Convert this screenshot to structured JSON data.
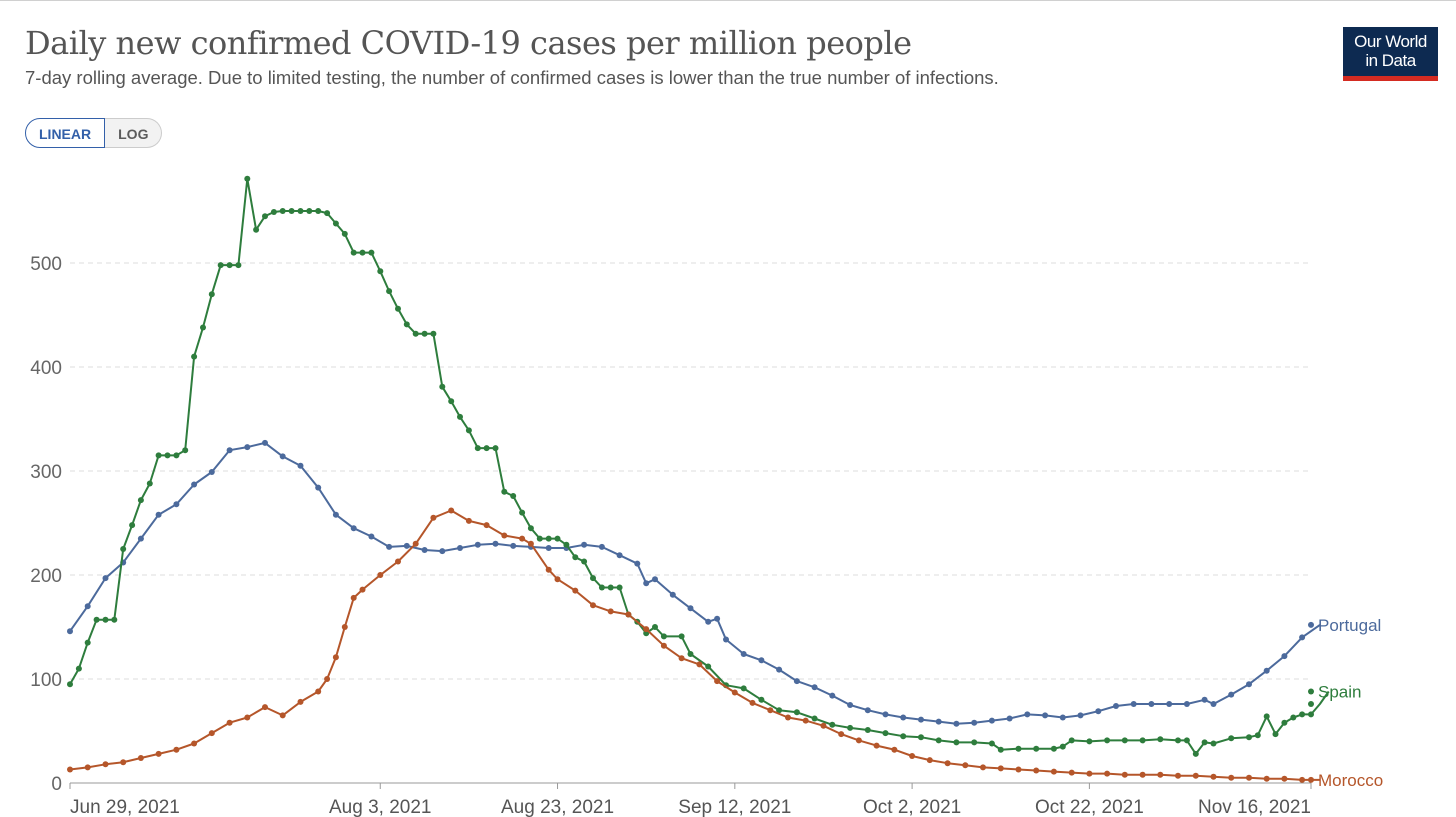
{
  "header": {
    "title": "Daily new confirmed COVID-19 cases per million people",
    "subtitle": "7-day rolling average. Due to limited testing, the number of confirmed cases is lower than the true number of infections."
  },
  "logo": {
    "line1": "Our World",
    "line2": "in Data"
  },
  "scale_toggle": {
    "linear_label": "LINEAR",
    "log_label": "LOG",
    "selected": "LINEAR"
  },
  "chart_data": {
    "type": "line",
    "title": "Daily new confirmed COVID-19 cases per million people",
    "subtitle": "7-day rolling average. Due to limited testing, the number of confirmed cases is lower than the true number of infections.",
    "xlabel": "",
    "ylabel": "",
    "x_range": [
      "2021-06-29",
      "2021-11-16"
    ],
    "ylim": [
      0,
      580
    ],
    "y_ticks": [
      0,
      100,
      200,
      300,
      400,
      500
    ],
    "x_ticks": [
      {
        "date": "2021-06-29",
        "label": "Jun 29, 2021"
      },
      {
        "date": "2021-08-03",
        "label": "Aug 3, 2021"
      },
      {
        "date": "2021-08-23",
        "label": "Aug 23, 2021"
      },
      {
        "date": "2021-09-12",
        "label": "Sep 12, 2021"
      },
      {
        "date": "2021-10-02",
        "label": "Oct 2, 2021"
      },
      {
        "date": "2021-10-22",
        "label": "Oct 22, 2021"
      },
      {
        "date": "2021-11-16",
        "label": "Nov 16, 2021"
      }
    ],
    "grid": "horizontal dashed",
    "legend": "line-end labels",
    "series": [
      {
        "name": "Portugal",
        "color": "#4c6a9c",
        "points": [
          [
            "2021-06-29",
            146
          ],
          [
            "2021-07-01",
            170
          ],
          [
            "2021-07-03",
            197
          ],
          [
            "2021-07-05",
            212
          ],
          [
            "2021-07-07",
            235
          ],
          [
            "2021-07-09",
            258
          ],
          [
            "2021-07-11",
            268
          ],
          [
            "2021-07-13",
            287
          ],
          [
            "2021-07-15",
            299
          ],
          [
            "2021-07-17",
            320
          ],
          [
            "2021-07-19",
            323
          ],
          [
            "2021-07-21",
            327
          ],
          [
            "2021-07-23",
            314
          ],
          [
            "2021-07-25",
            305
          ],
          [
            "2021-07-27",
            284
          ],
          [
            "2021-07-29",
            258
          ],
          [
            "2021-07-31",
            245
          ],
          [
            "2021-08-02",
            237
          ],
          [
            "2021-08-04",
            227
          ],
          [
            "2021-08-06",
            228
          ],
          [
            "2021-08-08",
            224
          ],
          [
            "2021-08-10",
            223
          ],
          [
            "2021-08-12",
            226
          ],
          [
            "2021-08-14",
            229
          ],
          [
            "2021-08-16",
            230
          ],
          [
            "2021-08-18",
            228
          ],
          [
            "2021-08-20",
            227
          ],
          [
            "2021-08-22",
            226
          ],
          [
            "2021-08-24",
            226
          ],
          [
            "2021-08-26",
            229
          ],
          [
            "2021-08-28",
            227
          ],
          [
            "2021-08-30",
            219
          ],
          [
            "2021-09-01",
            211
          ],
          [
            "2021-09-02",
            192
          ],
          [
            "2021-09-03",
            196
          ],
          [
            "2021-09-05",
            181
          ],
          [
            "2021-09-07",
            168
          ],
          [
            "2021-09-09",
            155
          ],
          [
            "2021-09-10",
            158
          ],
          [
            "2021-09-11",
            138
          ],
          [
            "2021-09-13",
            124
          ],
          [
            "2021-09-15",
            118
          ],
          [
            "2021-09-17",
            109
          ],
          [
            "2021-09-19",
            98
          ],
          [
            "2021-09-21",
            92
          ],
          [
            "2021-09-23",
            84
          ],
          [
            "2021-09-25",
            75
          ],
          [
            "2021-09-27",
            70
          ],
          [
            "2021-09-29",
            66
          ],
          [
            "2021-10-01",
            63
          ],
          [
            "2021-10-03",
            61
          ],
          [
            "2021-10-05",
            59
          ],
          [
            "2021-10-07",
            57
          ],
          [
            "2021-10-09",
            58
          ],
          [
            "2021-10-11",
            60
          ],
          [
            "2021-10-13",
            62
          ],
          [
            "2021-10-15",
            66
          ],
          [
            "2021-10-17",
            65
          ],
          [
            "2021-10-19",
            63
          ],
          [
            "2021-10-21",
            65
          ],
          [
            "2021-10-23",
            69
          ],
          [
            "2021-10-25",
            74
          ],
          [
            "2021-10-27",
            76
          ],
          [
            "2021-10-29",
            76
          ],
          [
            "2021-10-31",
            76
          ],
          [
            "2021-11-02",
            76
          ],
          [
            "2021-11-04",
            80
          ],
          [
            "2021-11-05",
            76
          ],
          [
            "2021-11-07",
            85
          ],
          [
            "2021-11-09",
            95
          ],
          [
            "2021-11-11",
            108
          ],
          [
            "2021-11-13",
            122
          ],
          [
            "2021-11-15",
            140
          ],
          [
            "2021-11-17",
            152
          ]
        ]
      },
      {
        "name": "Spain",
        "color": "#2e7d3d",
        "points": [
          [
            "2021-06-29",
            95
          ],
          [
            "2021-06-30",
            110
          ],
          [
            "2021-07-01",
            135
          ],
          [
            "2021-07-02",
            157
          ],
          [
            "2021-07-03",
            157
          ],
          [
            "2021-07-04",
            157
          ],
          [
            "2021-07-05",
            225
          ],
          [
            "2021-07-06",
            248
          ],
          [
            "2021-07-07",
            272
          ],
          [
            "2021-07-08",
            288
          ],
          [
            "2021-07-09",
            315
          ],
          [
            "2021-07-10",
            315
          ],
          [
            "2021-07-11",
            315
          ],
          [
            "2021-07-12",
            320
          ],
          [
            "2021-07-13",
            410
          ],
          [
            "2021-07-14",
            438
          ],
          [
            "2021-07-15",
            470
          ],
          [
            "2021-07-16",
            498
          ],
          [
            "2021-07-17",
            498
          ],
          [
            "2021-07-18",
            498
          ],
          [
            "2021-07-19",
            581
          ],
          [
            "2021-07-20",
            532
          ],
          [
            "2021-07-21",
            545
          ],
          [
            "2021-07-22",
            549
          ],
          [
            "2021-07-23",
            550
          ],
          [
            "2021-07-24",
            550
          ],
          [
            "2021-07-25",
            550
          ],
          [
            "2021-07-26",
            550
          ],
          [
            "2021-07-27",
            550
          ],
          [
            "2021-07-28",
            548
          ],
          [
            "2021-07-29",
            538
          ],
          [
            "2021-07-30",
            528
          ],
          [
            "2021-07-31",
            510
          ],
          [
            "2021-08-01",
            510
          ],
          [
            "2021-08-02",
            510
          ],
          [
            "2021-08-03",
            492
          ],
          [
            "2021-08-04",
            473
          ],
          [
            "2021-08-05",
            456
          ],
          [
            "2021-08-06",
            441
          ],
          [
            "2021-08-07",
            432
          ],
          [
            "2021-08-08",
            432
          ],
          [
            "2021-08-09",
            432
          ],
          [
            "2021-08-10",
            381
          ],
          [
            "2021-08-11",
            367
          ],
          [
            "2021-08-12",
            352
          ],
          [
            "2021-08-13",
            339
          ],
          [
            "2021-08-14",
            322
          ],
          [
            "2021-08-15",
            322
          ],
          [
            "2021-08-16",
            322
          ],
          [
            "2021-08-17",
            280
          ],
          [
            "2021-08-18",
            276
          ],
          [
            "2021-08-19",
            260
          ],
          [
            "2021-08-20",
            245
          ],
          [
            "2021-08-21",
            235
          ],
          [
            "2021-08-22",
            235
          ],
          [
            "2021-08-23",
            235
          ],
          [
            "2021-08-24",
            229
          ],
          [
            "2021-08-25",
            217
          ],
          [
            "2021-08-26",
            213
          ],
          [
            "2021-08-27",
            197
          ],
          [
            "2021-08-28",
            188
          ],
          [
            "2021-08-29",
            188
          ],
          [
            "2021-08-30",
            188
          ],
          [
            "2021-08-31",
            162
          ],
          [
            "2021-09-01",
            155
          ],
          [
            "2021-09-02",
            144
          ],
          [
            "2021-09-03",
            150
          ],
          [
            "2021-09-04",
            141
          ],
          [
            "2021-09-06",
            141
          ],
          [
            "2021-09-07",
            124
          ],
          [
            "2021-09-09",
            112
          ],
          [
            "2021-09-11",
            94
          ],
          [
            "2021-09-13",
            91
          ],
          [
            "2021-09-15",
            80
          ],
          [
            "2021-09-17",
            70
          ],
          [
            "2021-09-19",
            68
          ],
          [
            "2021-09-21",
            62
          ],
          [
            "2021-09-23",
            56
          ],
          [
            "2021-09-25",
            53
          ],
          [
            "2021-09-27",
            51
          ],
          [
            "2021-09-29",
            48
          ],
          [
            "2021-10-01",
            45
          ],
          [
            "2021-10-03",
            44
          ],
          [
            "2021-10-05",
            41
          ],
          [
            "2021-10-07",
            39
          ],
          [
            "2021-10-09",
            39
          ],
          [
            "2021-10-11",
            38
          ],
          [
            "2021-10-12",
            32
          ],
          [
            "2021-10-14",
            33
          ],
          [
            "2021-10-16",
            33
          ],
          [
            "2021-10-18",
            33
          ],
          [
            "2021-10-19",
            35
          ],
          [
            "2021-10-20",
            41
          ],
          [
            "2021-10-22",
            40
          ],
          [
            "2021-10-24",
            41
          ],
          [
            "2021-10-26",
            41
          ],
          [
            "2021-10-28",
            41
          ],
          [
            "2021-10-30",
            42
          ],
          [
            "2021-11-01",
            41
          ],
          [
            "2021-11-02",
            41
          ],
          [
            "2021-11-03",
            28
          ],
          [
            "2021-11-04",
            39
          ],
          [
            "2021-11-05",
            38
          ],
          [
            "2021-11-07",
            43
          ],
          [
            "2021-11-09",
            44
          ],
          [
            "2021-11-10",
            46
          ],
          [
            "2021-11-11",
            64
          ],
          [
            "2021-11-12",
            47
          ],
          [
            "2021-11-13",
            58
          ],
          [
            "2021-11-14",
            63
          ],
          [
            "2021-11-15",
            66
          ],
          [
            "2021-11-16",
            66
          ],
          [
            "2021-11-17",
            76
          ],
          [
            "2021-11-18",
            88
          ]
        ]
      },
      {
        "name": "Morocco",
        "color": "#b5562a",
        "points": [
          [
            "2021-06-29",
            13
          ],
          [
            "2021-07-01",
            15
          ],
          [
            "2021-07-03",
            18
          ],
          [
            "2021-07-05",
            20
          ],
          [
            "2021-07-07",
            24
          ],
          [
            "2021-07-09",
            28
          ],
          [
            "2021-07-11",
            32
          ],
          [
            "2021-07-13",
            38
          ],
          [
            "2021-07-15",
            48
          ],
          [
            "2021-07-17",
            58
          ],
          [
            "2021-07-19",
            63
          ],
          [
            "2021-07-21",
            73
          ],
          [
            "2021-07-23",
            65
          ],
          [
            "2021-07-25",
            78
          ],
          [
            "2021-07-27",
            88
          ],
          [
            "2021-07-28",
            100
          ],
          [
            "2021-07-29",
            121
          ],
          [
            "2021-07-30",
            150
          ],
          [
            "2021-07-31",
            178
          ],
          [
            "2021-08-01",
            186
          ],
          [
            "2021-08-03",
            200
          ],
          [
            "2021-08-05",
            213
          ],
          [
            "2021-08-07",
            230
          ],
          [
            "2021-08-09",
            255
          ],
          [
            "2021-08-11",
            262
          ],
          [
            "2021-08-13",
            252
          ],
          [
            "2021-08-15",
            248
          ],
          [
            "2021-08-17",
            238
          ],
          [
            "2021-08-19",
            235
          ],
          [
            "2021-08-20",
            230
          ],
          [
            "2021-08-22",
            205
          ],
          [
            "2021-08-23",
            196
          ],
          [
            "2021-08-25",
            185
          ],
          [
            "2021-08-27",
            171
          ],
          [
            "2021-08-29",
            165
          ],
          [
            "2021-08-31",
            162
          ],
          [
            "2021-09-02",
            148
          ],
          [
            "2021-09-04",
            132
          ],
          [
            "2021-09-06",
            120
          ],
          [
            "2021-09-08",
            114
          ],
          [
            "2021-09-10",
            98
          ],
          [
            "2021-09-12",
            87
          ],
          [
            "2021-09-14",
            77
          ],
          [
            "2021-09-16",
            70
          ],
          [
            "2021-09-18",
            63
          ],
          [
            "2021-09-20",
            60
          ],
          [
            "2021-09-22",
            55
          ],
          [
            "2021-09-24",
            47
          ],
          [
            "2021-09-26",
            41
          ],
          [
            "2021-09-28",
            36
          ],
          [
            "2021-09-30",
            32
          ],
          [
            "2021-10-02",
            26
          ],
          [
            "2021-10-04",
            22
          ],
          [
            "2021-10-06",
            19
          ],
          [
            "2021-10-08",
            17
          ],
          [
            "2021-10-10",
            15
          ],
          [
            "2021-10-12",
            14
          ],
          [
            "2021-10-14",
            13
          ],
          [
            "2021-10-16",
            12
          ],
          [
            "2021-10-18",
            11
          ],
          [
            "2021-10-20",
            10
          ],
          [
            "2021-10-22",
            9
          ],
          [
            "2021-10-24",
            9
          ],
          [
            "2021-10-26",
            8
          ],
          [
            "2021-10-28",
            8
          ],
          [
            "2021-10-30",
            8
          ],
          [
            "2021-11-01",
            7
          ],
          [
            "2021-11-03",
            7
          ],
          [
            "2021-11-05",
            6
          ],
          [
            "2021-11-07",
            5
          ],
          [
            "2021-11-09",
            5
          ],
          [
            "2021-11-11",
            4
          ],
          [
            "2021-11-13",
            4
          ],
          [
            "2021-11-15",
            3
          ],
          [
            "2021-11-17",
            3
          ]
        ]
      }
    ]
  }
}
